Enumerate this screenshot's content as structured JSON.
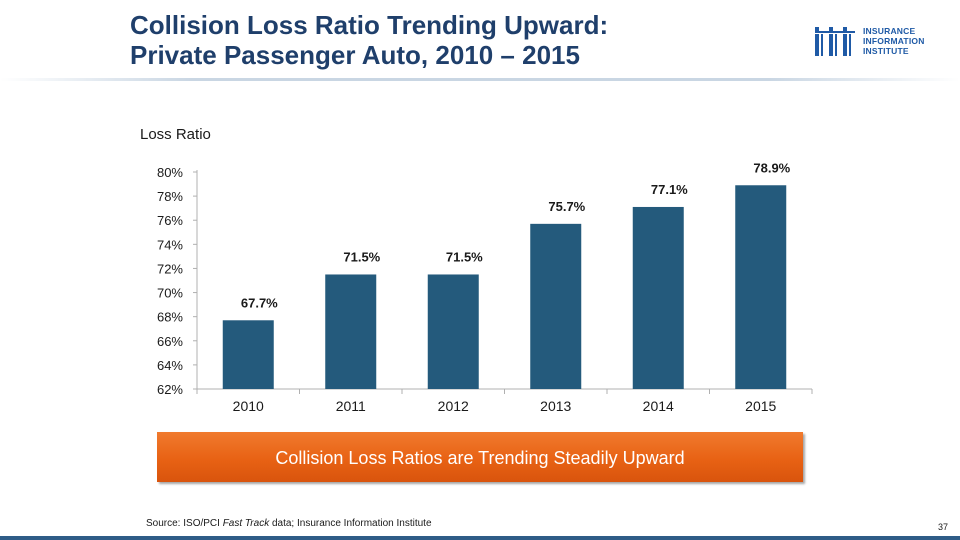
{
  "slide": {
    "title_line1": "Collision Loss Ratio Trending Upward:",
    "title_line2": "Private Passenger Auto, 2010 – 2015",
    "y_axis_label": "Loss Ratio",
    "callout": "Collision Loss Ratios are Trending Steadily Upward",
    "source_prefix": "Source: ISO/PCI ",
    "source_italic": "Fast Track",
    "source_suffix": " data; Insurance Information Institute",
    "page_number": "37"
  },
  "logo": {
    "line1": "INSURANCE",
    "line2": "INFORMATION",
    "line3": "INSTITUTE"
  },
  "colors": {
    "bar": "#245a7c",
    "title": "#1f3f6b",
    "callout": "#e86214",
    "logo": "#1f5aa6"
  },
  "chart_data": {
    "type": "bar",
    "title": "",
    "xlabel": "",
    "ylabel": "Loss Ratio",
    "categories": [
      "2010",
      "2011",
      "2012",
      "2013",
      "2014",
      "2015"
    ],
    "values": [
      67.7,
      71.5,
      71.5,
      75.7,
      77.1,
      78.9
    ],
    "data_labels": [
      "67.7%",
      "71.5%",
      "71.5%",
      "75.7%",
      "77.1%",
      "78.9%"
    ],
    "ylim": [
      62,
      80
    ],
    "yticks": [
      62,
      64,
      66,
      68,
      70,
      72,
      74,
      76,
      78,
      80
    ],
    "ytick_labels": [
      "62%",
      "64%",
      "66%",
      "68%",
      "70%",
      "72%",
      "74%",
      "76%",
      "78%",
      "80%"
    ],
    "grid": false,
    "legend": "none"
  }
}
